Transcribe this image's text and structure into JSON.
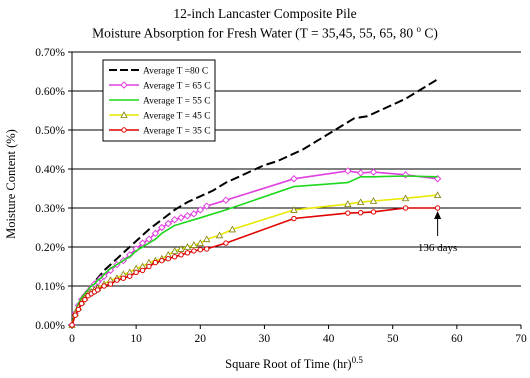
{
  "chart_data": {
    "type": "line",
    "title": "12-inch Lancaster Composite Pile",
    "subtitle": "Moisture Absorption for Fresh Water (T = 35,45, 55, 65, 80 ",
    "subtitle_sup": "o",
    "subtitle_end": " C)",
    "xlabel": "Square Root of Time (hr)",
    "xlabel_sup": "0.5",
    "ylabel": "Moisture Content (%)",
    "xlim": [
      0,
      70
    ],
    "ylim": [
      0,
      0.7
    ],
    "x_ticks": [
      0,
      10,
      20,
      30,
      40,
      50,
      60,
      70
    ],
    "x_tick_labels": [
      "0",
      "10",
      "20",
      "30",
      "40",
      "50",
      "60",
      "70"
    ],
    "y_ticks": [
      0,
      0.1,
      0.2,
      0.3,
      0.4,
      0.5,
      0.6,
      0.7
    ],
    "y_tick_labels": [
      "0.00%",
      "0.10%",
      "0.20%",
      "0.30%",
      "0.40%",
      "0.50%",
      "0.60%",
      "0.70%"
    ],
    "grid": "horizontal",
    "legend_position": "top-left",
    "annotation": {
      "text": "136 days",
      "x": 57,
      "y": 0.3
    },
    "series": [
      {
        "name": "Average T =80 C",
        "color": "#000000",
        "dash": true,
        "marker": "none",
        "x": [
          0,
          0.5,
          1,
          1.5,
          2,
          3,
          4,
          5,
          6,
          7,
          8,
          10,
          12,
          14,
          16,
          18,
          20,
          22,
          24,
          26,
          28,
          30,
          32,
          34,
          36,
          38,
          40,
          42,
          44,
          46,
          48,
          50,
          52,
          54,
          56,
          57
        ],
        "y": [
          0,
          0.03,
          0.05,
          0.07,
          0.08,
          0.1,
          0.12,
          0.14,
          0.155,
          0.17,
          0.185,
          0.215,
          0.245,
          0.27,
          0.295,
          0.315,
          0.33,
          0.345,
          0.365,
          0.38,
          0.395,
          0.41,
          0.42,
          0.435,
          0.45,
          0.47,
          0.49,
          0.51,
          0.53,
          0.535,
          0.55,
          0.565,
          0.58,
          0.6,
          0.62,
          0.63
        ]
      },
      {
        "name": "Average T = 65 C",
        "color": "#e040e0",
        "dash": false,
        "marker": "diamond",
        "x": [
          0,
          0.5,
          1,
          1.5,
          2,
          2.5,
          3,
          3.5,
          4,
          4.5,
          5,
          6,
          7,
          8,
          9,
          10,
          11,
          12,
          13,
          14,
          15,
          16,
          17,
          18,
          19,
          20,
          21,
          24,
          34.6,
          43,
          45,
          47,
          52,
          57
        ],
        "y": [
          0,
          0.03,
          0.05,
          0.065,
          0.075,
          0.085,
          0.095,
          0.105,
          0.11,
          0.12,
          0.125,
          0.14,
          0.155,
          0.165,
          0.18,
          0.195,
          0.21,
          0.22,
          0.235,
          0.25,
          0.26,
          0.27,
          0.275,
          0.28,
          0.285,
          0.295,
          0.305,
          0.32,
          0.375,
          0.395,
          0.39,
          0.392,
          0.385,
          0.375
        ]
      },
      {
        "name": "Average T = 55 C",
        "color": "#1ed81e",
        "dash": false,
        "marker": "none",
        "x": [
          0,
          0.5,
          1,
          1.5,
          2,
          2.5,
          3,
          3.5,
          4,
          4.5,
          5,
          6,
          7,
          8,
          9,
          10,
          11,
          12,
          13,
          14,
          15,
          16,
          17,
          18,
          19,
          20,
          21,
          24,
          34.6,
          43,
          45,
          47,
          52,
          57
        ],
        "y": [
          0,
          0.035,
          0.055,
          0.07,
          0.08,
          0.09,
          0.1,
          0.105,
          0.115,
          0.12,
          0.13,
          0.145,
          0.155,
          0.165,
          0.175,
          0.19,
          0.2,
          0.21,
          0.22,
          0.235,
          0.245,
          0.255,
          0.26,
          0.265,
          0.27,
          0.275,
          0.28,
          0.295,
          0.355,
          0.365,
          0.38,
          0.38,
          0.382,
          0.38
        ]
      },
      {
        "name": "Average T = 45 C",
        "color": "#e8e800",
        "dash": false,
        "marker": "triangle",
        "x": [
          0,
          0.5,
          1,
          1.5,
          2,
          2.5,
          3,
          3.5,
          4,
          5,
          6,
          7,
          8,
          9,
          10,
          11,
          12,
          13,
          14,
          15,
          16,
          17,
          18,
          19,
          20,
          21,
          23,
          25,
          34.6,
          43,
          45,
          47,
          52,
          57
        ],
        "y": [
          0,
          0.03,
          0.045,
          0.06,
          0.07,
          0.08,
          0.085,
          0.09,
          0.095,
          0.105,
          0.115,
          0.12,
          0.13,
          0.135,
          0.145,
          0.15,
          0.16,
          0.165,
          0.17,
          0.18,
          0.19,
          0.195,
          0.2,
          0.205,
          0.21,
          0.22,
          0.23,
          0.245,
          0.295,
          0.31,
          0.315,
          0.318,
          0.325,
          0.333
        ]
      },
      {
        "name": "Average T = 35 C",
        "color": "#e00000",
        "dash": false,
        "marker": "circle",
        "x": [
          0,
          0.5,
          1,
          1.5,
          2,
          2.5,
          3,
          3.5,
          4,
          5,
          6,
          7,
          8,
          9,
          10,
          11,
          12,
          13,
          14,
          15,
          16,
          17,
          18,
          19,
          20,
          21,
          24,
          34.6,
          43,
          45,
          47,
          52,
          57
        ],
        "y": [
          0,
          0.025,
          0.04,
          0.055,
          0.065,
          0.075,
          0.08,
          0.085,
          0.09,
          0.1,
          0.105,
          0.115,
          0.12,
          0.125,
          0.135,
          0.14,
          0.15,
          0.16,
          0.165,
          0.17,
          0.175,
          0.18,
          0.185,
          0.19,
          0.193,
          0.195,
          0.21,
          0.273,
          0.287,
          0.288,
          0.29,
          0.3,
          0.3
        ]
      }
    ]
  }
}
